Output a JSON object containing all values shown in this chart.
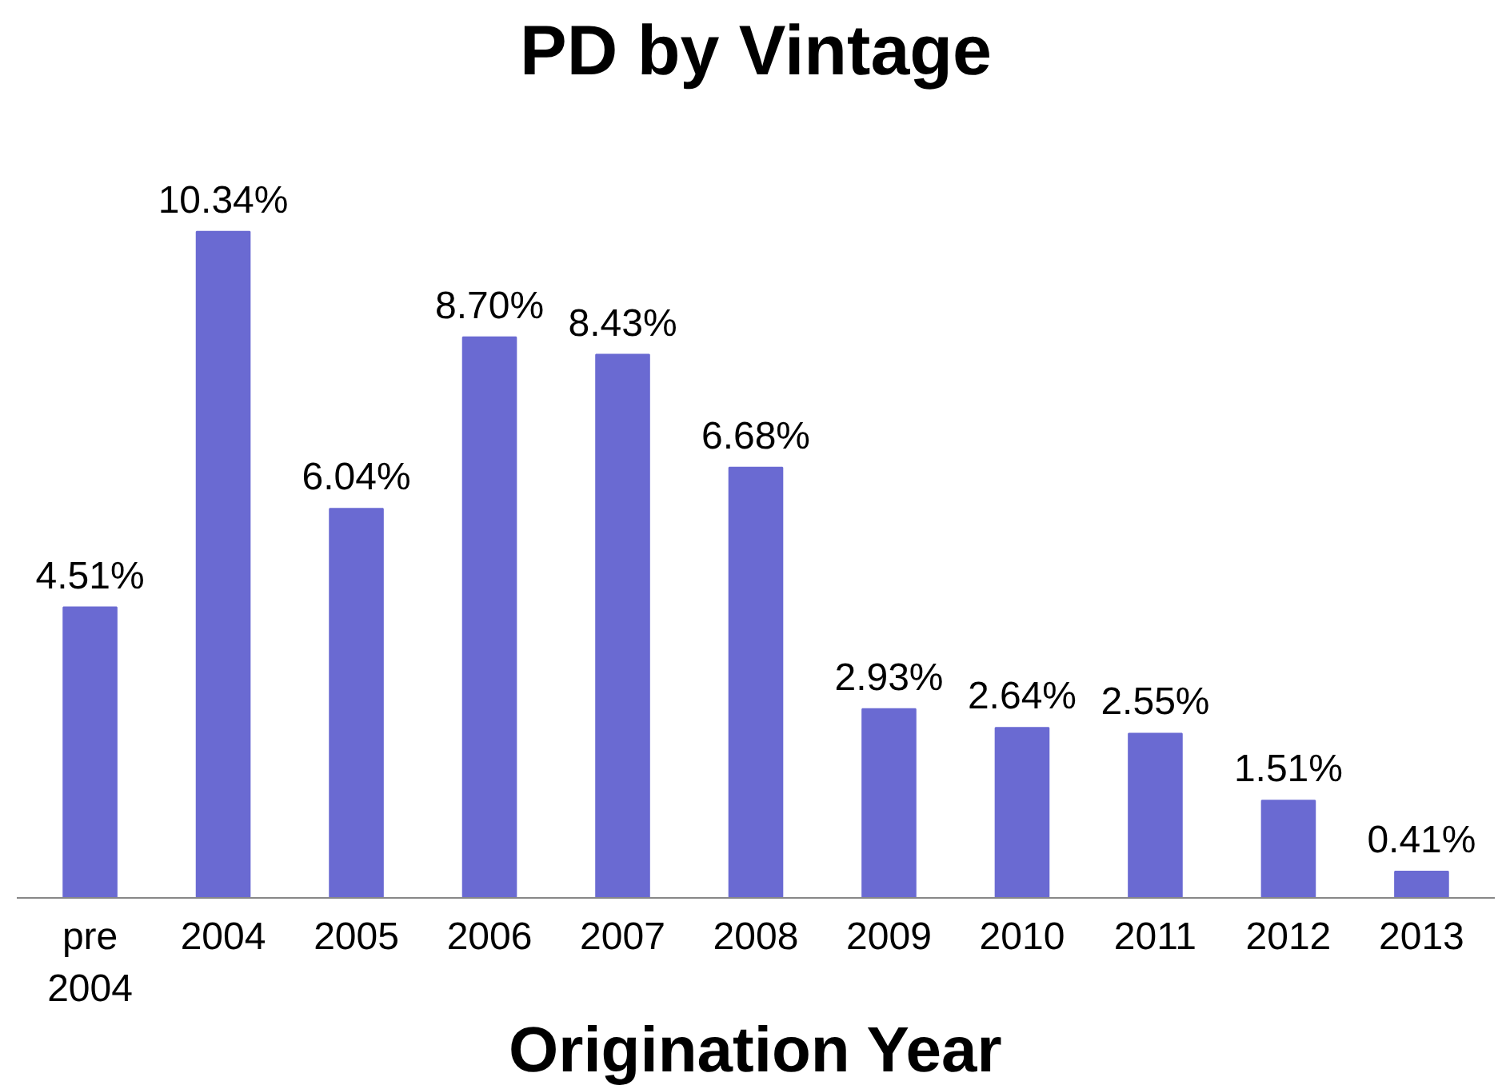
{
  "chart_data": {
    "type": "bar",
    "title": "PD by Vintage",
    "xlabel": "Origination Year",
    "categories": [
      "pre\n2004",
      "2004",
      "2005",
      "2006",
      "2007",
      "2008",
      "2009",
      "2010",
      "2011",
      "2012",
      "2013"
    ],
    "values": [
      4.51,
      10.34,
      6.04,
      8.7,
      8.43,
      6.68,
      2.93,
      2.64,
      2.55,
      1.51,
      0.41
    ],
    "value_labels": [
      "4.51%",
      "10.34%",
      "6.04%",
      "8.70%",
      "8.43%",
      "6.68%",
      "2.93%",
      "2.64%",
      "2.55%",
      "1.51%",
      "0.41%"
    ],
    "color": "#6a6ad2",
    "grid": false
  }
}
